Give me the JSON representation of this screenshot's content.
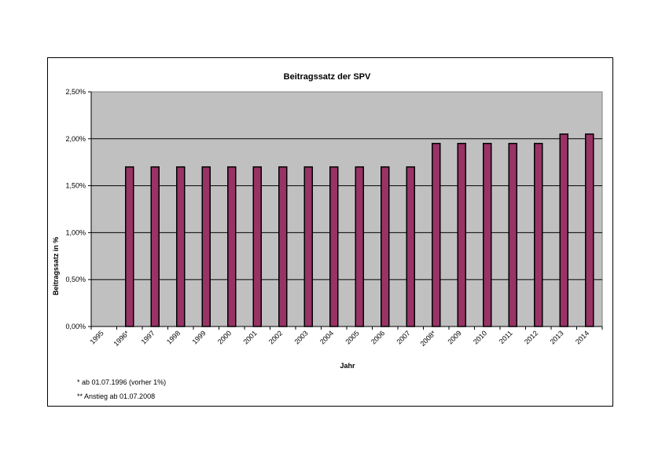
{
  "colors": {
    "bar": "#993366",
    "plot_bg": "#c0c0c0",
    "grid": "#000000"
  },
  "chart_data": {
    "type": "bar",
    "title": "Beitragssatz der SPV",
    "xlabel": "Jahr",
    "ylabel": "Beitragssatz in %",
    "ylim": [
      0,
      0.025
    ],
    "yticks": [
      {
        "value": 0,
        "label": "0,00%"
      },
      {
        "value": 0.005,
        "label": "0,50%"
      },
      {
        "value": 0.01,
        "label": "1,00%"
      },
      {
        "value": 0.015,
        "label": "1,50%"
      },
      {
        "value": 0.02,
        "label": "2,00%"
      },
      {
        "value": 0.025,
        "label": "2,50%"
      }
    ],
    "grid": true,
    "legend": "none",
    "categories": [
      "1995",
      "1996*",
      "1997",
      "1998",
      "1999",
      "2000",
      "2001",
      "2002",
      "2003",
      "2004",
      "2005",
      "2006",
      "2007",
      "2008*",
      "2009",
      "2010",
      "2011",
      "2012",
      "2013",
      "2014"
    ],
    "values": [
      null,
      0.017,
      0.017,
      0.017,
      0.017,
      0.017,
      0.017,
      0.017,
      0.017,
      0.017,
      0.017,
      0.017,
      0.017,
      0.0195,
      0.0195,
      0.0195,
      0.0195,
      0.0195,
      0.0205,
      0.0205
    ]
  },
  "footnotes": [
    "* ab 01.07.1996 (vorher 1%)",
    "** Anstieg ab 01.07.2008"
  ]
}
